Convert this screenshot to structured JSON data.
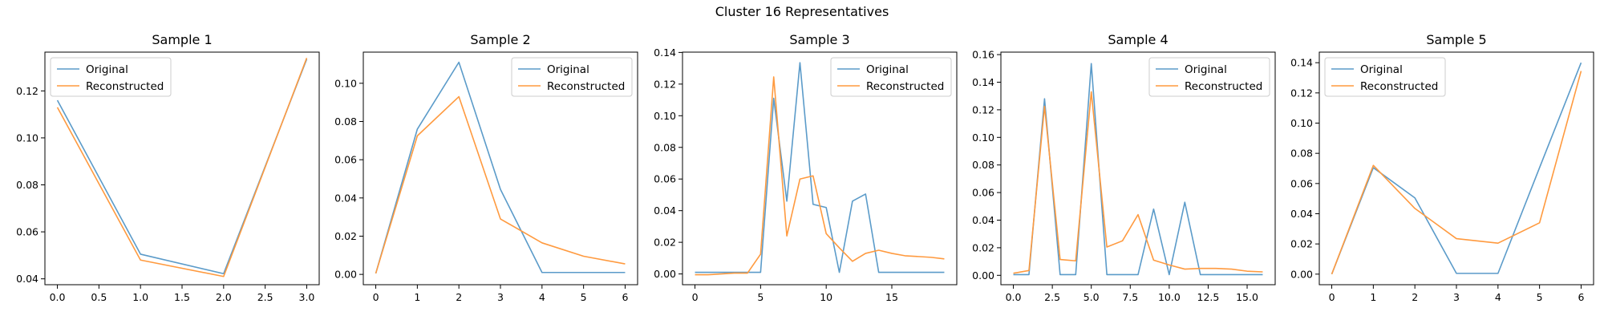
{
  "figure": {
    "title": "Cluster 16 Representatives",
    "colors": {
      "Original": "#5b9bc9",
      "Reconstructed": "#ff9a3f"
    }
  },
  "chart_data": [
    {
      "type": "line",
      "title": "Sample 1",
      "xlim": [
        -0.15,
        3.15
      ],
      "ylim": [
        0.0375,
        0.1365
      ],
      "xticks": [
        0.0,
        0.5,
        1.0,
        1.5,
        2.0,
        2.5,
        3.0
      ],
      "xtick_labels": [
        "0.0",
        "0.5",
        "1.0",
        "1.5",
        "2.0",
        "2.5",
        "3.0"
      ],
      "yticks": [
        0.04,
        0.06,
        0.08,
        0.1,
        0.12
      ],
      "ytick_labels": [
        "0.04",
        "0.06",
        "0.08",
        "0.10",
        "0.12"
      ],
      "legend": {
        "position": "upper left",
        "entries": [
          "Original",
          "Reconstructed"
        ]
      },
      "x": [
        0,
        1,
        2,
        3
      ],
      "series": [
        {
          "name": "Original",
          "values": [
            0.116,
            0.0505,
            0.0422,
            0.1335
          ]
        },
        {
          "name": "Reconstructed",
          "values": [
            0.113,
            0.048,
            0.041,
            0.134
          ]
        }
      ]
    },
    {
      "type": "line",
      "title": "Sample 2",
      "xlim": [
        -0.3,
        6.3
      ],
      "ylim": [
        -0.0054,
        0.1163
      ],
      "xticks": [
        0,
        1,
        2,
        3,
        4,
        5,
        6
      ],
      "xtick_labels": [
        "0",
        "1",
        "2",
        "3",
        "4",
        "5",
        "6"
      ],
      "yticks": [
        0.0,
        0.02,
        0.04,
        0.06,
        0.08,
        0.1
      ],
      "ytick_labels": [
        "0.00",
        "0.02",
        "0.04",
        "0.06",
        "0.08",
        "0.10"
      ],
      "legend": {
        "position": "upper right",
        "entries": [
          "Original",
          "Reconstructed"
        ]
      },
      "x": [
        0,
        1,
        2,
        3,
        4,
        5,
        6
      ],
      "series": [
        {
          "name": "Original",
          "values": [
            0.0005,
            0.076,
            0.111,
            0.0445,
            0.001,
            0.001,
            0.001
          ]
        },
        {
          "name": "Reconstructed",
          "values": [
            0.0005,
            0.0725,
            0.093,
            0.029,
            0.0165,
            0.0095,
            0.0055
          ]
        }
      ]
    },
    {
      "type": "line",
      "title": "Sample 3",
      "xlim": [
        -0.95,
        19.95
      ],
      "ylim": [
        -0.0068,
        0.1402
      ],
      "xticks": [
        0,
        5,
        10,
        15
      ],
      "xtick_labels": [
        "0",
        "5",
        "10",
        "15"
      ],
      "yticks": [
        0.0,
        0.02,
        0.04,
        0.06,
        0.08,
        0.1,
        0.12,
        0.14
      ],
      "ytick_labels": [
        "0.00",
        "0.02",
        "0.04",
        "0.06",
        "0.08",
        "0.10",
        "0.12",
        "0.14"
      ],
      "legend": {
        "position": "upper right",
        "entries": [
          "Original",
          "Reconstructed"
        ]
      },
      "x": [
        0,
        1,
        2,
        3,
        4,
        5,
        6,
        7,
        8,
        9,
        10,
        11,
        12,
        13,
        14,
        15,
        16,
        17,
        18,
        19
      ],
      "series": [
        {
          "name": "Original",
          "values": [
            0.001,
            0.001,
            0.001,
            0.001,
            0.001,
            0.001,
            0.111,
            0.046,
            0.1335,
            0.044,
            0.042,
            0.001,
            0.046,
            0.0505,
            0.001,
            0.001,
            0.001,
            0.001,
            0.001,
            0.001
          ]
        },
        {
          "name": "Reconstructed",
          "values": [
            -0.0005,
            -0.0005,
            0.0,
            0.0005,
            0.0005,
            0.0125,
            0.1245,
            0.024,
            0.06,
            0.062,
            0.0255,
            0.0165,
            0.008,
            0.013,
            0.015,
            0.013,
            0.0115,
            0.011,
            0.0105,
            0.0095
          ]
        }
      ]
    },
    {
      "type": "line",
      "title": "Sample 4",
      "xlim": [
        -0.8,
        16.8
      ],
      "ylim": [
        -0.0068,
        0.1618
      ],
      "xticks": [
        0.0,
        2.5,
        5.0,
        7.5,
        10.0,
        12.5,
        15.0
      ],
      "xtick_labels": [
        "0.0",
        "2.5",
        "5.0",
        "7.5",
        "10.0",
        "12.5",
        "15.0"
      ],
      "yticks": [
        0.0,
        0.02,
        0.04,
        0.06,
        0.08,
        0.1,
        0.12,
        0.14,
        0.16
      ],
      "ytick_labels": [
        "0.00",
        "0.02",
        "0.04",
        "0.06",
        "0.08",
        "0.10",
        "0.12",
        "0.14",
        "0.16"
      ],
      "legend": {
        "position": "upper right",
        "entries": [
          "Original",
          "Reconstructed"
        ]
      },
      "x": [
        0,
        1,
        2,
        3,
        4,
        5,
        6,
        7,
        8,
        9,
        10,
        11,
        12,
        13,
        14,
        15,
        16
      ],
      "series": [
        {
          "name": "Original",
          "values": [
            0.0005,
            0.0005,
            0.128,
            0.0005,
            0.0005,
            0.1535,
            0.0005,
            0.0005,
            0.0005,
            0.048,
            0.0005,
            0.053,
            0.0005,
            0.0005,
            0.0005,
            0.0005,
            0.0005
          ]
        },
        {
          "name": "Reconstructed",
          "values": [
            0.0015,
            0.0035,
            0.1225,
            0.0115,
            0.0105,
            0.133,
            0.0205,
            0.025,
            0.044,
            0.011,
            0.0075,
            0.0045,
            0.005,
            0.005,
            0.0045,
            0.003,
            0.0025
          ]
        }
      ]
    },
    {
      "type": "line",
      "title": "Sample 5",
      "xlim": [
        -0.3,
        6.3
      ],
      "ylim": [
        -0.007,
        0.147
      ],
      "xticks": [
        0,
        1,
        2,
        3,
        4,
        5,
        6
      ],
      "xtick_labels": [
        "0",
        "1",
        "2",
        "3",
        "4",
        "5",
        "6"
      ],
      "yticks": [
        0.0,
        0.02,
        0.04,
        0.06,
        0.08,
        0.1,
        0.12,
        0.14
      ],
      "ytick_labels": [
        "0.00",
        "0.02",
        "0.04",
        "0.06",
        "0.08",
        "0.10",
        "0.12",
        "0.14"
      ],
      "legend": {
        "position": "upper left",
        "entries": [
          "Original",
          "Reconstructed"
        ]
      },
      "x": [
        0,
        1,
        2,
        3,
        4,
        5,
        6
      ],
      "series": [
        {
          "name": "Original",
          "values": [
            0.0,
            0.0705,
            0.0505,
            0.0005,
            0.0005,
            0.0705,
            0.14
          ]
        },
        {
          "name": "Reconstructed",
          "values": [
            0.0,
            0.072,
            0.0435,
            0.0235,
            0.0205,
            0.034,
            0.1345
          ]
        }
      ]
    }
  ]
}
